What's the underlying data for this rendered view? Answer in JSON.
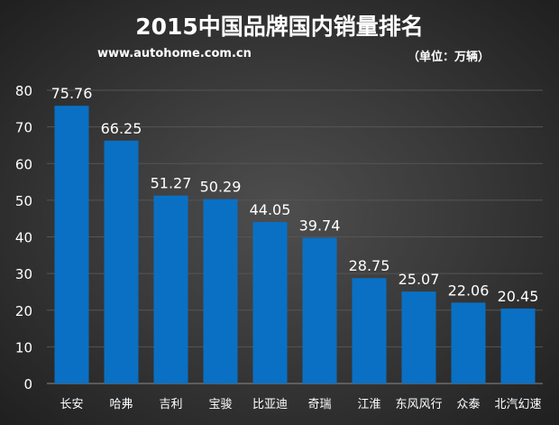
{
  "chart_data": {
    "type": "bar",
    "title": "2015中国品牌国内销量排名",
    "subtitle": "www.autohome.com.cn",
    "unit_label": "（单位：万辆）",
    "categories": [
      "长安",
      "哈弗",
      "吉利",
      "宝骏",
      "比亚迪",
      "奇瑞",
      "江淮",
      "东风风行",
      "众泰",
      "北汽幻速"
    ],
    "values": [
      75.76,
      66.25,
      51.27,
      50.29,
      44.05,
      39.74,
      28.75,
      25.07,
      22.06,
      20.45
    ],
    "ylim": [
      0,
      80
    ],
    "yticks": [
      0,
      10,
      20,
      30,
      40,
      50,
      60,
      70,
      80
    ],
    "grid": true,
    "legend": "none",
    "colors": {
      "bar": "#0a70c4",
      "background": "#3a3a3a"
    }
  }
}
